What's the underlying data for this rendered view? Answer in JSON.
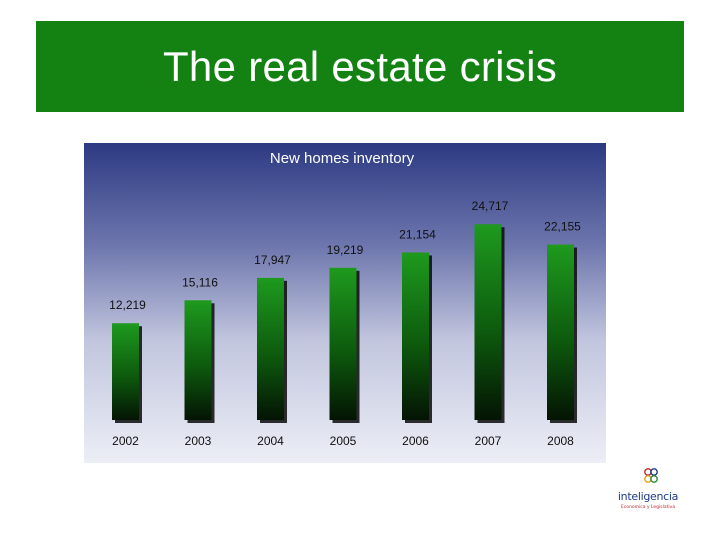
{
  "slide": {
    "title": "The real estate crisis"
  },
  "chart_data": {
    "type": "bar",
    "title": "New homes inventory",
    "categories": [
      "2002",
      "2003",
      "2004",
      "2005",
      "2006",
      "2007",
      "2008"
    ],
    "values": [
      12219,
      15116,
      17947,
      19219,
      21154,
      24717,
      22155
    ],
    "value_labels": [
      "12,219",
      "15,116",
      "17,947",
      "19,219",
      "21,154",
      "24,717",
      "22,155"
    ],
    "ylim": [
      0,
      25000
    ],
    "xlabel": "",
    "ylabel": "",
    "grid": false,
    "legend": "none"
  },
  "logo": {
    "name": "inteligencia",
    "tagline": "Economica y Legislativa"
  },
  "colors": {
    "title_band": "#138212",
    "bar_top": "#1e9a1e",
    "bar_bottom": "#041404",
    "panel_top": "#2d3a82",
    "panel_bottom": "#eceef6"
  }
}
